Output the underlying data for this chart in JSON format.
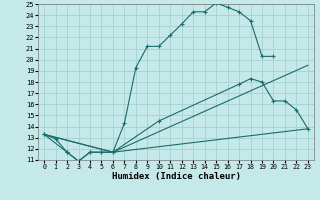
{
  "xlabel": "Humidex (Indice chaleur)",
  "xlim": [
    -0.5,
    23.5
  ],
  "ylim": [
    11,
    25
  ],
  "xticks": [
    0,
    1,
    2,
    3,
    4,
    5,
    6,
    7,
    8,
    9,
    10,
    11,
    12,
    13,
    14,
    15,
    16,
    17,
    18,
    19,
    20,
    21,
    22,
    23
  ],
  "yticks": [
    11,
    12,
    13,
    14,
    15,
    16,
    17,
    18,
    19,
    20,
    21,
    22,
    23,
    24,
    25
  ],
  "bg_color": "#c5e8e8",
  "grid_color": "#aad4d4",
  "line_color": "#1a6b6b",
  "lines": [
    {
      "x": [
        0,
        1,
        2,
        3,
        4,
        5,
        6,
        7,
        8,
        9,
        10,
        11,
        12,
        13,
        14,
        15,
        16,
        17,
        18,
        19,
        20
      ],
      "y": [
        13.3,
        12.9,
        11.7,
        10.9,
        11.7,
        11.7,
        11.7,
        14.3,
        19.3,
        21.2,
        21.2,
        22.2,
        23.2,
        24.3,
        24.3,
        25.1,
        24.7,
        24.3,
        23.5,
        20.3,
        20.3
      ]
    },
    {
      "x": [
        0,
        2,
        3,
        4,
        5,
        6,
        10,
        17,
        18,
        19,
        20,
        21,
        22,
        23
      ],
      "y": [
        13.3,
        11.7,
        10.9,
        11.7,
        11.7,
        11.7,
        14.5,
        17.8,
        18.3,
        18.0,
        16.3,
        16.3,
        15.5,
        13.8
      ]
    },
    {
      "x": [
        0,
        6,
        23
      ],
      "y": [
        13.3,
        11.7,
        13.8
      ]
    },
    {
      "x": [
        0,
        6,
        23
      ],
      "y": [
        13.3,
        11.7,
        19.5
      ]
    }
  ]
}
